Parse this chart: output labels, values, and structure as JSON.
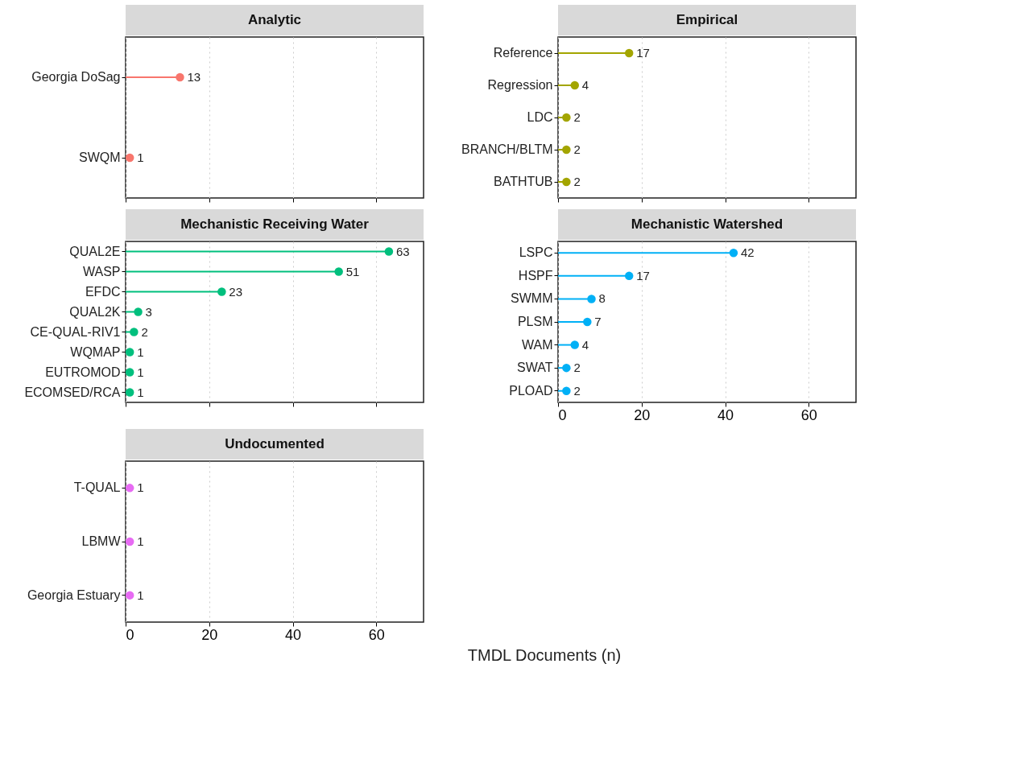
{
  "chart_data": [
    {
      "type": "lollipop",
      "orientation": "horizontal",
      "title": "Analytic",
      "categories": [
        "Georgia DoSag",
        "SWQM"
      ],
      "series": [
        {
          "color": "#f8766d",
          "values": [
            13,
            1
          ]
        }
      ],
      "xlim": [
        0,
        71.3
      ],
      "xticks": [
        0,
        20,
        40,
        60
      ],
      "grid": "x",
      "tick_labels": "y",
      "data_labels": true
    },
    {
      "type": "lollipop",
      "orientation": "horizontal",
      "title": "Empirical",
      "categories": [
        "Reference",
        "Regression",
        "LDC",
        "BRANCH/BLTM",
        "BATHTUB"
      ],
      "series": [
        {
          "color": "#a3a500",
          "values": [
            17,
            4,
            2,
            2,
            2
          ]
        }
      ],
      "xlim": [
        0,
        71.3
      ],
      "xticks": [
        0,
        20,
        40,
        60
      ],
      "grid": "x",
      "tick_labels": "y",
      "data_labels": true
    },
    {
      "type": "lollipop",
      "orientation": "horizontal",
      "title": "Mechanistic Receiving Water",
      "categories": [
        "QUAL2E",
        "WASP",
        "EFDC",
        "QUAL2K",
        "CE-QUAL-RIV1",
        "WQMAP",
        "EUTROMOD",
        "ECOMSED/RCA"
      ],
      "series": [
        {
          "color": "#00bf7d",
          "values": [
            63,
            51,
            23,
            3,
            2,
            1,
            1,
            1
          ]
        }
      ],
      "xlim": [
        0,
        71.3
      ],
      "xticks": [
        0,
        20,
        40,
        60
      ],
      "grid": "x",
      "tick_labels": "y",
      "data_labels": true
    },
    {
      "type": "lollipop",
      "orientation": "horizontal",
      "title": "Mechanistic Watershed",
      "categories": [
        "LSPC",
        "HSPF",
        "SWMM",
        "PLSM",
        "WAM",
        "SWAT",
        "PLOAD"
      ],
      "series": [
        {
          "color": "#00b0f6",
          "values": [
            42,
            17,
            8,
            7,
            4,
            2,
            2
          ]
        }
      ],
      "xlim": [
        0,
        71.3
      ],
      "xticks": [
        0,
        20,
        40,
        60
      ],
      "grid": "x",
      "data_labels": true
    },
    {
      "type": "lollipop",
      "orientation": "horizontal",
      "title": "Undocumented",
      "categories": [
        "T-QUAL",
        "LBMW",
        "Georgia Estuary"
      ],
      "series": [
        {
          "color": "#e76bf3",
          "values": [
            1,
            1,
            1
          ]
        }
      ],
      "xlim": [
        0,
        71.3
      ],
      "xticks": [
        0,
        20,
        40,
        60
      ],
      "grid": "x",
      "data_labels": true,
      "xlabel": "TMDL Documents (n)"
    }
  ]
}
